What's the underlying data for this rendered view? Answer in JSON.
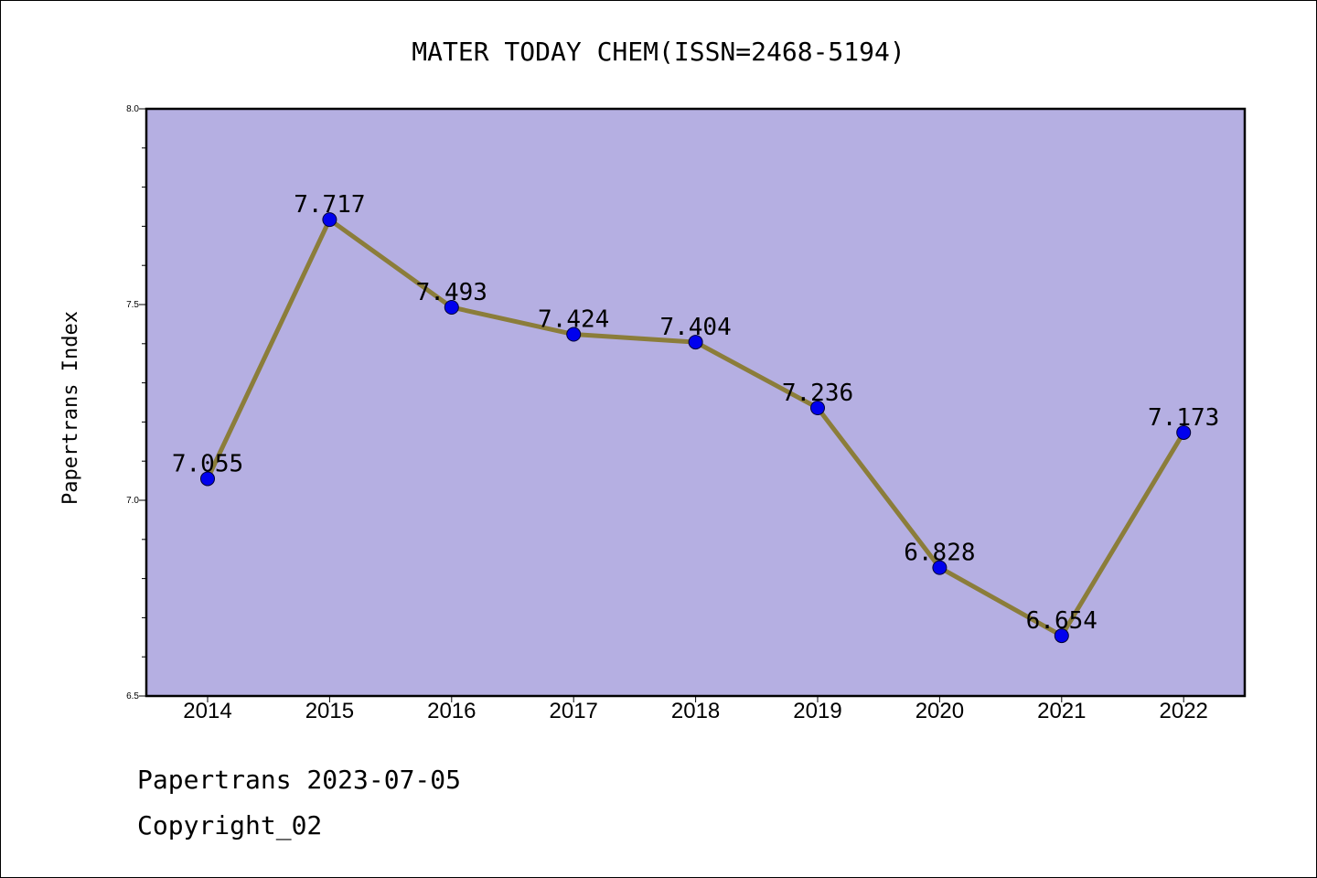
{
  "chart_data": {
    "type": "line",
    "title": "MATER TODAY CHEM(ISSN=2468-5194)",
    "xlabel": "",
    "ylabel": "Papertrans Index",
    "categories": [
      "2014",
      "2015",
      "2016",
      "2017",
      "2018",
      "2019",
      "2020",
      "2021",
      "2022"
    ],
    "series": [
      {
        "values": [
          7.055,
          7.717,
          7.493,
          7.424,
          7.404,
          7.236,
          6.828,
          6.654,
          7.173
        ],
        "labels": [
          "7.055",
          "7.717",
          "7.493",
          "7.424",
          "7.404",
          "7.236",
          "6.828",
          "6.654",
          "7.173"
        ],
        "line_color": "#8b7d3a",
        "marker_color": "#0000ee"
      }
    ],
    "ylim": [
      6.5,
      8.0
    ],
    "yticks": [
      "6.5",
      "7.0",
      "7.5",
      "8.0"
    ],
    "grid": false,
    "legend": "none",
    "plot_background": "#b5afe2"
  },
  "footer": {
    "line1": "Papertrans 2023-07-05",
    "line2": "Copyright_02"
  }
}
